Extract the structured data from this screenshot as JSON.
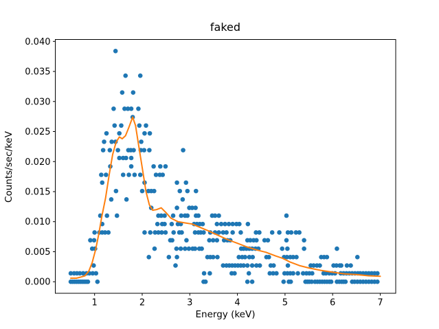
{
  "chart_data": {
    "type": "scatter",
    "title": "faked",
    "xlabel": "Energy (keV)",
    "ylabel": "Counts/sec/keV",
    "xlim": [
      0.175,
      7.325
    ],
    "ylim": [
      -0.00192,
      0.04032
    ],
    "x_ticks": [
      1,
      2,
      3,
      4,
      5,
      6,
      7
    ],
    "x_tick_labels": [
      "1",
      "2",
      "3",
      "4",
      "5",
      "6",
      "7"
    ],
    "y_ticks": [
      0.0,
      0.005,
      0.01,
      0.015,
      0.02,
      0.025,
      0.03,
      0.035,
      0.04
    ],
    "y_tick_labels": [
      "0.000",
      "0.005",
      "0.010",
      "0.015",
      "0.020",
      "0.025",
      "0.030",
      "0.035",
      "0.040"
    ],
    "grid": false,
    "legend": null,
    "colors": {
      "scatter": "#1f77b4",
      "line": "#ff7f0e",
      "axes": "#000000",
      "background": "#ffffff"
    },
    "scatter_levels": [
      {
        "y": 0.0384,
        "x": [
          1.44
        ]
      },
      {
        "y": 0.0343,
        "x": [
          1.65,
          1.96
        ]
      },
      {
        "y": 0.0315,
        "x": [
          1.58,
          1.81
        ]
      },
      {
        "y": 0.0288,
        "x": [
          1.4,
          1.63,
          1.7,
          1.77,
          1.92
        ]
      },
      {
        "y": 0.0274,
        "x": [
          1.8
        ]
      },
      {
        "y": 0.026,
        "x": [
          1.42,
          1.56,
          1.94,
          2.08
        ]
      },
      {
        "y": 0.0247,
        "x": [
          1.25,
          1.52,
          2.05,
          2.16
        ]
      },
      {
        "y": 0.0233,
        "x": [
          1.2,
          1.36,
          1.44,
          1.98
        ]
      },
      {
        "y": 0.0219,
        "x": [
          1.18,
          1.32,
          1.49,
          1.71,
          1.76,
          1.82,
          1.97,
          2.04,
          2.15,
          2.86
        ]
      },
      {
        "y": 0.0206,
        "x": [
          1.52,
          1.6,
          1.66,
          1.77
        ]
      },
      {
        "y": 0.0192,
        "x": [
          1.33,
          1.77,
          2.24,
          2.38,
          2.49
        ]
      },
      {
        "y": 0.0178,
        "x": [
          1.14,
          1.24,
          1.6,
          1.72,
          1.84,
          1.96,
          2.29,
          2.37,
          2.43
        ]
      },
      {
        "y": 0.0165,
        "x": [
          1.16,
          2.05,
          2.73,
          2.92
        ]
      },
      {
        "y": 0.0151,
        "x": [
          1.45,
          2.0,
          2.13,
          2.19,
          2.25,
          2.79,
          2.95,
          3.13
        ]
      },
      {
        "y": 0.0137,
        "x": [
          1.35,
          1.67,
          2.85
        ]
      },
      {
        "y": 0.0123,
        "x": [
          2.19,
          2.73,
          2.99,
          3.05,
          3.12
        ]
      },
      {
        "y": 0.011,
        "x": [
          1.12,
          1.26,
          1.47,
          2.34,
          2.4,
          2.47,
          2.65,
          2.82,
          2.9,
          2.95,
          3.13,
          3.18,
          3.47,
          3.53,
          3.61,
          5.03
        ]
      },
      {
        "y": 0.0096,
        "x": [
          1.16,
          2.32,
          2.42,
          2.47,
          2.62,
          2.75,
          2.81,
          3.09,
          3.15,
          3.21,
          3.27,
          3.57,
          3.66,
          3.74,
          3.82,
          3.9,
          3.98,
          4.04,
          4.22
        ]
      },
      {
        "y": 0.0082,
        "x": [
          1.0,
          1.1,
          1.16,
          1.22,
          1.29,
          2.05,
          2.17,
          2.27,
          2.34,
          2.41,
          2.49,
          2.66,
          2.78,
          2.83,
          3.11,
          3.18,
          3.23,
          3.29,
          3.43,
          3.53,
          3.61,
          3.7,
          3.77,
          3.9,
          4.07,
          4.39,
          4.46,
          4.73,
          4.88,
          5.06,
          5.13,
          5.23,
          5.3
        ]
      },
      {
        "y": 0.0069,
        "x": [
          0.91,
          0.99,
          2.59,
          2.63,
          2.93,
          3.41,
          3.49,
          3.57,
          3.72,
          3.79,
          3.85,
          4.21,
          4.27,
          4.34,
          4.4,
          4.57,
          4.64,
          5.03,
          5.4
        ]
      },
      {
        "y": 0.0055,
        "x": [
          0.95,
          1.01,
          2.26,
          2.72,
          2.81,
          2.9,
          2.98,
          3.06,
          3.11,
          3.2,
          3.25,
          4.08,
          4.13,
          4.19,
          4.25,
          4.31,
          4.38,
          4.44,
          4.94,
          5.05,
          5.4,
          6.09
        ]
      },
      {
        "y": 0.0041,
        "x": [
          2.14,
          2.56,
          2.73,
          3.37,
          3.43,
          3.49,
          3.58,
          4.03,
          4.1,
          4.16,
          4.25,
          4.32,
          4.61,
          4.66,
          4.98,
          5.04,
          5.11,
          5.17,
          5.24,
          5.76,
          5.82,
          5.88,
          6.52
        ]
      },
      {
        "y": 0.0027,
        "x": [
          0.98,
          2.7,
          3.7,
          3.77,
          3.83,
          3.89,
          3.95,
          4.01,
          4.07,
          4.13,
          4.21,
          4.31,
          4.4,
          4.47,
          4.7,
          4.76,
          5.06,
          5.54,
          5.6,
          5.67,
          5.73,
          6.02,
          6.08,
          6.15,
          6.18,
          6.3,
          6.38
        ]
      },
      {
        "y": 0.0014,
        "x": [
          0.5,
          0.57,
          0.63,
          0.69,
          0.76,
          0.83,
          0.89,
          0.96,
          1.03,
          3.3,
          3.42,
          3.88,
          3.94,
          4.24,
          4.68,
          4.75,
          4.82,
          4.99,
          5.05,
          5.11,
          5.17,
          5.27,
          5.38,
          5.45,
          5.51,
          5.57,
          5.81,
          5.86,
          5.93,
          5.99,
          6.05,
          6.17,
          6.23,
          6.29,
          6.35,
          6.41,
          6.47,
          6.53,
          6.58,
          6.64,
          6.7,
          6.76,
          6.82,
          6.88,
          6.94
        ]
      },
      {
        "y": 0.0,
        "x": [
          0.5,
          0.54,
          0.58,
          0.62,
          0.66,
          0.7,
          0.74,
          0.78,
          0.82,
          0.86,
          1.06,
          3.29,
          3.33,
          4.21,
          4.31,
          4.97,
          5.08,
          5.12,
          5.43,
          5.47,
          5.51,
          5.56,
          5.63,
          5.68,
          5.73,
          5.78,
          5.83,
          5.88,
          5.93,
          5.97,
          6.09,
          6.14,
          6.19,
          6.23,
          6.27,
          6.41,
          6.46,
          6.52,
          6.58,
          6.64,
          6.7,
          6.76,
          6.82,
          6.88,
          6.94
        ]
      }
    ],
    "model_line": [
      [
        0.5,
        0.0006
      ],
      [
        0.62,
        0.0006
      ],
      [
        0.72,
        0.0008
      ],
      [
        0.8,
        0.001
      ],
      [
        0.88,
        0.0018
      ],
      [
        0.95,
        0.0032
      ],
      [
        1.02,
        0.0053
      ],
      [
        1.09,
        0.008
      ],
      [
        1.15,
        0.0108
      ],
      [
        1.23,
        0.0139
      ],
      [
        1.31,
        0.018
      ],
      [
        1.38,
        0.0212
      ],
      [
        1.45,
        0.0232
      ],
      [
        1.52,
        0.0241
      ],
      [
        1.58,
        0.0238
      ],
      [
        1.65,
        0.0243
      ],
      [
        1.72,
        0.0257
      ],
      [
        1.8,
        0.0274
      ],
      [
        1.86,
        0.026
      ],
      [
        1.92,
        0.023
      ],
      [
        2.0,
        0.019
      ],
      [
        2.08,
        0.015
      ],
      [
        2.15,
        0.0128
      ],
      [
        2.22,
        0.0119
      ],
      [
        2.3,
        0.012
      ],
      [
        2.4,
        0.0123
      ],
      [
        2.5,
        0.0115
      ],
      [
        2.6,
        0.0106
      ],
      [
        2.75,
        0.01
      ],
      [
        2.9,
        0.0098
      ],
      [
        3.05,
        0.0096
      ],
      [
        3.2,
        0.0091
      ],
      [
        3.38,
        0.0085
      ],
      [
        3.6,
        0.0077
      ],
      [
        3.8,
        0.007
      ],
      [
        4.0,
        0.0064
      ],
      [
        4.2,
        0.0058
      ],
      [
        4.4,
        0.0053
      ],
      [
        4.6,
        0.0049
      ],
      [
        4.8,
        0.0043
      ],
      [
        4.95,
        0.0039
      ],
      [
        5.1,
        0.0033
      ],
      [
        5.3,
        0.0027
      ],
      [
        5.5,
        0.0023
      ],
      [
        5.75,
        0.0019
      ],
      [
        6.0,
        0.0016
      ],
      [
        6.25,
        0.0013
      ],
      [
        6.5,
        0.0012
      ],
      [
        6.75,
        0.001
      ],
      [
        7.0,
        0.0009
      ]
    ]
  }
}
